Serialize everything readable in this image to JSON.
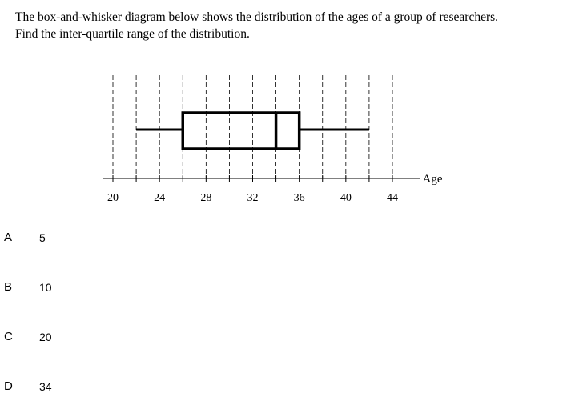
{
  "question": {
    "line1": "The box-and-whisker diagram below shows the distribution of the ages of a group of researchers.",
    "line2": "Find the inter-quartile range of the distribution."
  },
  "chart_data": {
    "type": "box",
    "xlabel": "Age",
    "tick_labels": [
      "20",
      "24",
      "28",
      "32",
      "36",
      "40",
      "44"
    ],
    "tick_values": [
      20,
      24,
      28,
      32,
      36,
      40,
      44
    ],
    "xlim": [
      19,
      45
    ],
    "gridlines": [
      20,
      22,
      24,
      26,
      28,
      30,
      32,
      34,
      36,
      38,
      40,
      42,
      44
    ],
    "grid": true,
    "box": {
      "min": 22,
      "q1": 26,
      "median": 34,
      "q3": 36,
      "max": 42
    }
  },
  "options": [
    {
      "letter": "A",
      "value": "5"
    },
    {
      "letter": "B",
      "value": "10"
    },
    {
      "letter": "C",
      "value": "20"
    },
    {
      "letter": "D",
      "value": "34"
    }
  ]
}
